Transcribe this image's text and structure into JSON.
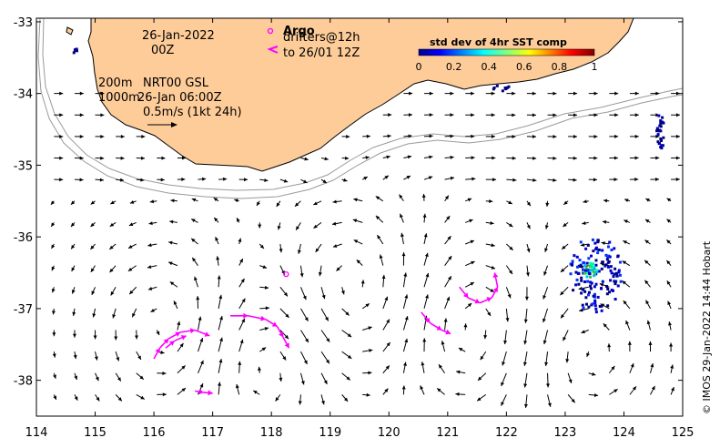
{
  "map": {
    "x_ticks": [
      "114",
      "115",
      "116",
      "117",
      "118",
      "119",
      "120",
      "121",
      "122",
      "123",
      "124",
      "125"
    ],
    "y_ticks": [
      "-33",
      "-34",
      "-35",
      "-36",
      "-37",
      "-38"
    ],
    "lon_range": [
      114,
      125
    ],
    "lat_range": [
      -38.5,
      -32.95
    ]
  },
  "annotations": {
    "date": "26-Jan-2022",
    "time": "00Z",
    "depth_200": "200m",
    "depth_1000": "1000m",
    "product": "NRT00 GSL",
    "product_time": "26-Jan 06:00Z",
    "scale_arrow": "0.5m/s (1kt 24h)",
    "argo_label": "Argo",
    "drifters_line1": "drifters@12h",
    "drifters_line2": "to 26/01 12Z"
  },
  "colorbar": {
    "title": "std dev of 4hr SST comp",
    "ticks": [
      "0",
      "0.2",
      "0.4",
      "0.6",
      "0.8",
      "1"
    ]
  },
  "credit": "© IMOS 29-Jan-2022 14:44 Hobart",
  "colors": {
    "land": "#fdcc99",
    "argo": "#ff00ff",
    "drifter": "#ff00ff",
    "isobath": "#9a9a9a",
    "arrow": "#000000"
  },
  "argo_floats": [
    [
      118.25,
      -36.52
    ]
  ],
  "drifter_tracks": [
    [
      [
        116.0,
        -37.7
      ],
      [
        116.1,
        -37.55
      ],
      [
        116.25,
        -37.42
      ],
      [
        116.45,
        -37.33
      ],
      [
        116.7,
        -37.3
      ],
      [
        116.95,
        -37.38
      ]
    ],
    [
      [
        116.2,
        -37.55
      ],
      [
        116.35,
        -37.45
      ],
      [
        116.55,
        -37.38
      ]
    ],
    [
      [
        117.3,
        -37.1
      ],
      [
        117.6,
        -37.1
      ],
      [
        117.9,
        -37.15
      ],
      [
        118.1,
        -37.25
      ],
      [
        118.2,
        -37.4
      ],
      [
        118.3,
        -37.55
      ]
    ],
    [
      [
        116.7,
        -38.15
      ],
      [
        116.85,
        -38.17
      ],
      [
        117.0,
        -38.18
      ]
    ],
    [
      [
        120.55,
        -37.05
      ],
      [
        120.7,
        -37.2
      ],
      [
        120.9,
        -37.3
      ],
      [
        121.05,
        -37.35
      ]
    ],
    [
      [
        121.2,
        -36.7
      ],
      [
        121.35,
        -36.85
      ],
      [
        121.55,
        -36.92
      ],
      [
        121.75,
        -36.85
      ],
      [
        121.85,
        -36.7
      ],
      [
        121.8,
        -36.5
      ]
    ]
  ]
}
